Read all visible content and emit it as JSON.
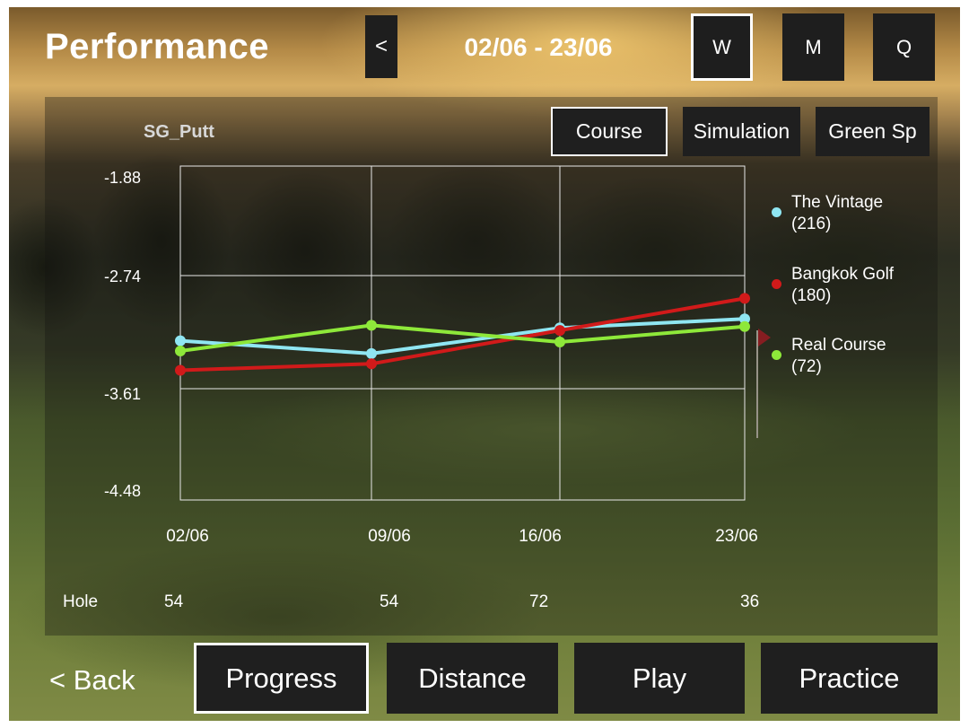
{
  "header": {
    "title": "Performance",
    "prev_label": "<",
    "date_range": "02/06 - 23/06",
    "period_buttons": [
      {
        "label": "W",
        "selected": true
      },
      {
        "label": "M",
        "selected": false
      },
      {
        "label": "Q",
        "selected": false
      }
    ]
  },
  "metric_label": "SG_Putt",
  "source_tabs": [
    {
      "label": "Course",
      "selected": true
    },
    {
      "label": "Simulation",
      "selected": false
    },
    {
      "label": "Green Sp",
      "selected": false
    }
  ],
  "legend": [
    {
      "name": "The Vintage",
      "count": "(216)",
      "color": "#8fe6f2"
    },
    {
      "name": "Bangkok Golf",
      "count": "(180)",
      "color": "#d11a1a"
    },
    {
      "name": "Real Course",
      "count": "(72)",
      "color": "#8ee83a"
    }
  ],
  "chart_data": {
    "type": "line",
    "x": [
      "02/06",
      "09/06",
      "16/06",
      "23/06"
    ],
    "y_ticks": [
      "-1.88",
      "-2.74",
      "-3.61",
      "-4.48"
    ],
    "ylim": [
      -4.48,
      -1.88
    ],
    "grid": true,
    "legend_position": "right",
    "series": [
      {
        "name": "The Vintage (216)",
        "color": "#8fe6f2",
        "values": [
          -3.24,
          -3.34,
          -3.14,
          -3.07
        ]
      },
      {
        "name": "Bangkok Golf (180)",
        "color": "#d11a1a",
        "values": [
          -3.47,
          -3.42,
          -3.16,
          -2.91
        ]
      },
      {
        "name": "Real Course (72)",
        "color": "#8ee83a",
        "values": [
          -3.32,
          -3.12,
          -3.25,
          -3.13
        ]
      }
    ]
  },
  "hole_row": {
    "label": "Hole",
    "values": [
      "54",
      "54",
      "72",
      "36"
    ]
  },
  "bottom_nav": {
    "back_label": "< Back",
    "items": [
      {
        "label": "Progress",
        "selected": true
      },
      {
        "label": "Distance",
        "selected": false
      },
      {
        "label": "Play",
        "selected": false
      },
      {
        "label": "Practice",
        "selected": false
      }
    ]
  }
}
